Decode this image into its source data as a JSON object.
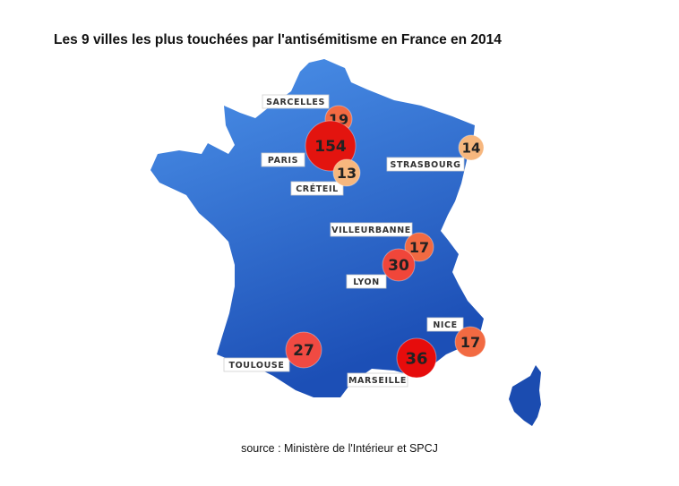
{
  "title": "Les 9 villes les plus touchées par l'antisémitisme en France en 2014",
  "source": "source : Ministère de l'Intérieur et SPCJ",
  "colors": {
    "land_light": "#4a8fe6",
    "land_dark": "#1b4fb8",
    "high": "#e3140f",
    "mid": "#f25a3c",
    "low": "#f7b77e"
  },
  "cities": [
    {
      "name": "SARCELLES",
      "value": "19",
      "color": "#f26a42"
    },
    {
      "name": "PARIS",
      "value": "154",
      "color": "#e3140f"
    },
    {
      "name": "CRÉTEIL",
      "value": "13",
      "color": "#f7b77e"
    },
    {
      "name": "STRASBOURG",
      "value": "14",
      "color": "#f7b77e"
    },
    {
      "name": "VILLEURBANNE",
      "value": "17",
      "color": "#f26a42"
    },
    {
      "name": "LYON",
      "value": "30",
      "color": "#f0463a"
    },
    {
      "name": "NICE",
      "value": "17",
      "color": "#f26a42"
    },
    {
      "name": "TOULOUSE",
      "value": "27",
      "color": "#f04a42"
    },
    {
      "name": "MARSEILLE",
      "value": "36",
      "color": "#e60c0c"
    }
  ]
}
